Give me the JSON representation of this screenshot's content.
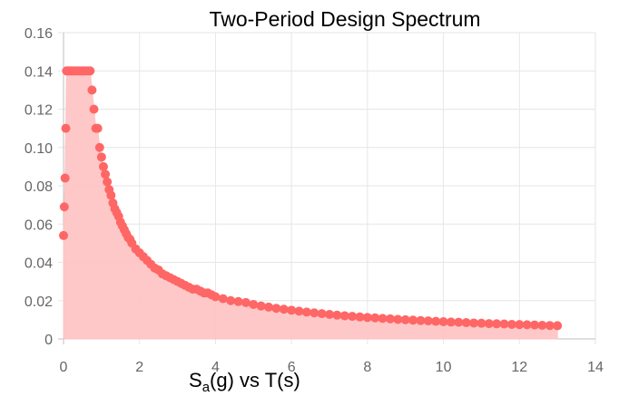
{
  "chart_data": {
    "type": "area",
    "title": "Two-Period Design Spectrum",
    "xlabel": "",
    "ylabel": "",
    "xlim": [
      0,
      14
    ],
    "ylim": [
      0,
      0.16
    ],
    "x_ticks": [
      "0",
      "2",
      "4",
      "6",
      "8",
      "10",
      "12",
      "14"
    ],
    "y_ticks": [
      "0",
      "0.02",
      "0.04",
      "0.06",
      "0.08",
      "0.10",
      "0.12",
      "0.14",
      "0.16"
    ],
    "grid": true,
    "legend": {
      "position": "bottom",
      "main": "S",
      "sub": "a",
      "rest": "(g) vs T(s)"
    },
    "colors": {
      "marker": "#ff6666",
      "fill": "#ffc2c2",
      "grid": "#e6e6e6",
      "axis": "#bfbfbf"
    },
    "series": [
      {
        "x": [
          0,
          0.02,
          0.04,
          0.06,
          0.08,
          0.1,
          0.14,
          0.18,
          0.22,
          0.26,
          0.3,
          0.35,
          0.4,
          0.45,
          0.5,
          0.55,
          0.6,
          0.65,
          0.7,
          0.75,
          0.8,
          0.85,
          0.9,
          0.95,
          1.0,
          1.05,
          1.1,
          1.15,
          1.2,
          1.25,
          1.3,
          1.35,
          1.4,
          1.45,
          1.5,
          1.55,
          1.6,
          1.65,
          1.7,
          1.75,
          1.8,
          1.9,
          2.0,
          2.1,
          2.2,
          2.3,
          2.4,
          2.5,
          2.6,
          2.7,
          2.8,
          2.9,
          3.0,
          3.1,
          3.2,
          3.3,
          3.4,
          3.5,
          3.6,
          3.7,
          3.8,
          3.9,
          4.0,
          4.2,
          4.4,
          4.6,
          4.8,
          5.0,
          5.2,
          5.4,
          5.6,
          5.8,
          6.0,
          6.2,
          6.4,
          6.6,
          6.8,
          7.0,
          7.2,
          7.4,
          7.6,
          7.8,
          8.0,
          8.2,
          8.4,
          8.6,
          8.8,
          9.0,
          9.2,
          9.4,
          9.6,
          9.8,
          10.0,
          10.2,
          10.4,
          10.6,
          10.8,
          11.0,
          11.2,
          11.4,
          11.6,
          11.8,
          12.0,
          12.2,
          12.4,
          12.6,
          12.8,
          13.0
        ],
        "y": [
          0.054,
          0.069,
          0.084,
          0.11,
          0.14,
          0.14,
          0.14,
          0.14,
          0.14,
          0.14,
          0.14,
          0.14,
          0.14,
          0.14,
          0.14,
          0.14,
          0.14,
          0.14,
          0.14,
          0.13,
          0.12,
          0.11,
          0.11,
          0.1,
          0.095,
          0.09,
          0.086,
          0.082,
          0.078,
          0.075,
          0.071,
          0.068,
          0.066,
          0.064,
          0.061,
          0.059,
          0.057,
          0.055,
          0.053,
          0.052,
          0.05,
          0.047,
          0.045,
          0.043,
          0.041,
          0.039,
          0.037,
          0.036,
          0.034,
          0.033,
          0.032,
          0.031,
          0.03,
          0.029,
          0.028,
          0.027,
          0.026,
          0.026,
          0.025,
          0.024,
          0.024,
          0.023,
          0.022,
          0.021,
          0.02,
          0.0195,
          0.019,
          0.018,
          0.0172,
          0.0166,
          0.016,
          0.0155,
          0.015,
          0.0145,
          0.014,
          0.0136,
          0.0132,
          0.0128,
          0.0124,
          0.0121,
          0.0118,
          0.0115,
          0.0112,
          0.011,
          0.0107,
          0.0105,
          0.0102,
          0.01,
          0.0098,
          0.0096,
          0.0094,
          0.0092,
          0.009,
          0.0088,
          0.0087,
          0.0085,
          0.0083,
          0.0082,
          0.008,
          0.0079,
          0.0078,
          0.0076,
          0.0075,
          0.0074,
          0.0073,
          0.0071,
          0.007,
          0.0069
        ]
      }
    ]
  }
}
